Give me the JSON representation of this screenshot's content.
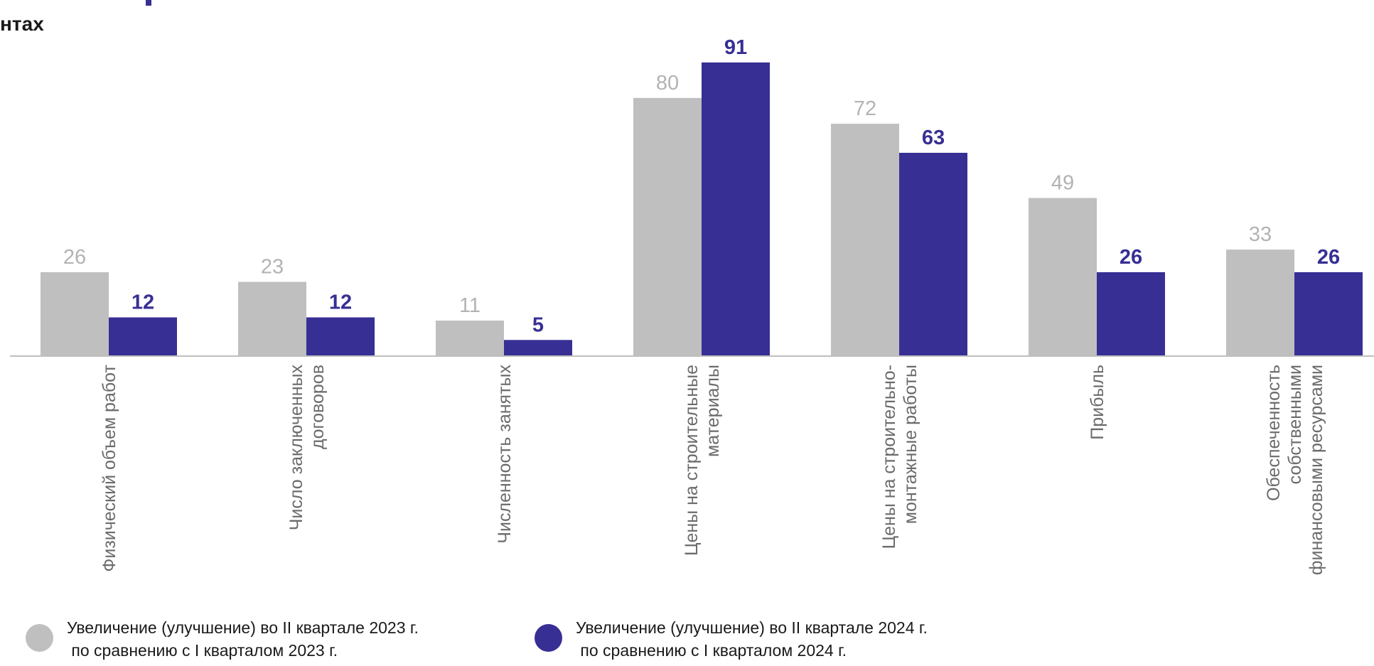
{
  "header": {
    "subtitle_fragment": "нтах"
  },
  "colors": {
    "series_2023": "#bfbfbf",
    "series_2024": "#372f94",
    "axis": "#bfbfbf",
    "label_2023": "#b3b3b3",
    "category_label": "#6b6b6b"
  },
  "chart_data": {
    "type": "bar",
    "categories": [
      "Физический объем работ",
      "Число заключенных\nдоговоров",
      "Численность занятых",
      "Цены на строительные\nматериалы",
      "Цены на строительно-\nмонтажные работы",
      "Прибыль",
      "Обеспеченность\nсобственными\nфинансовыми ресурсами"
    ],
    "series": [
      {
        "name": "Увеличение (улучшение) во II квартале 2023 г.\n по сравнению с I кварталом 2023 г.",
        "values": [
          26,
          23,
          11,
          80,
          72,
          49,
          33
        ]
      },
      {
        "name": "Увеличение (улучшение) во II квартале 2024 г.\n по сравнению с I кварталом 2024 г.",
        "values": [
          12,
          12,
          5,
          91,
          63,
          26,
          26
        ]
      }
    ],
    "ylim": [
      0,
      100
    ],
    "grid": false,
    "legend": "bottom-left",
    "data_labels": true
  }
}
